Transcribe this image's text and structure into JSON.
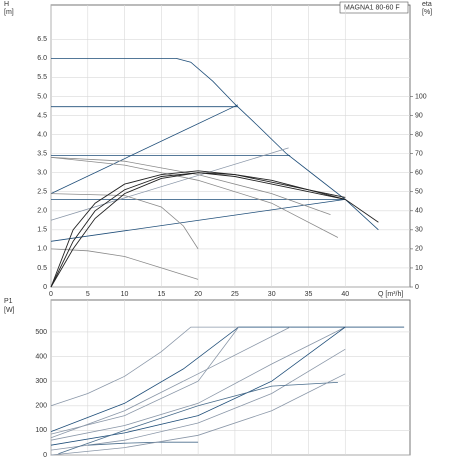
{
  "chart_data": [
    {
      "type": "line",
      "title": "MAGNA1 80-60 F",
      "ylabel": "H",
      "yunit": "[m]",
      "y2label": "eta",
      "y2unit": "[%]",
      "xlabel": "Q [m³/h]",
      "xlim": [
        0,
        48.8
      ],
      "ylim": [
        0,
        7.4
      ],
      "y2lim": [
        0,
        148
      ],
      "xticks": [
        0,
        5,
        10,
        15,
        20,
        25,
        30,
        35,
        40
      ],
      "yticks": [
        0,
        0.5,
        {
          "value": 1,
          "label": "1.0"
        },
        1.5,
        {
          "value": 2,
          "label": "2.0"
        },
        2.5,
        {
          "value": 3,
          "label": "3.0"
        },
        3.5,
        {
          "value": 4,
          "label": "4.0"
        },
        4.5,
        {
          "value": 5,
          "label": "5.0"
        },
        5.5,
        {
          "value": 6,
          "label": "6.0"
        },
        6.5
      ],
      "y2ticks": [
        0,
        10,
        20,
        30,
        40,
        50,
        60,
        70,
        80,
        90,
        100
      ],
      "grid": true,
      "series": [
        {
          "color": "#1f4e79",
          "x": [
            0,
            17,
            19,
            22,
            25,
            28,
            32,
            36,
            40,
            44.5
          ],
          "values": [
            6.0,
            6.0,
            5.9,
            5.4,
            4.8,
            4.25,
            3.5,
            2.9,
            2.3,
            1.5
          ]
        },
        {
          "color": "#1f4e79",
          "x": [
            0,
            25.4
          ],
          "values": [
            4.73,
            4.73
          ]
        },
        {
          "color": "#1f4e79",
          "x": [
            0,
            32.5
          ],
          "values": [
            3.45,
            3.45
          ]
        },
        {
          "color": "#1f4e79",
          "x": [
            0,
            40
          ],
          "values": [
            2.3,
            2.3
          ]
        },
        {
          "color": "#1f4e79",
          "x": [
            0,
            25.4
          ],
          "values": [
            2.45,
            4.78
          ]
        },
        {
          "color": "#8a97a8",
          "x": [
            0,
            32.3
          ],
          "values": [
            1.75,
            3.65
          ]
        },
        {
          "color": "#1f4e79",
          "x": [
            0,
            40
          ],
          "values": [
            1.2,
            2.3
          ]
        },
        {
          "color": "#8a8a8a",
          "x": [
            0,
            10,
            20,
            30,
            38
          ],
          "values": [
            3.4,
            3.3,
            2.95,
            2.45,
            1.9
          ]
        },
        {
          "color": "#8a8a8a",
          "x": [
            0,
            10,
            20,
            30,
            39
          ],
          "values": [
            3.4,
            3.2,
            2.8,
            2.2,
            1.3
          ]
        },
        {
          "color": "#8a8a8a",
          "x": [
            0,
            10,
            15,
            18,
            20
          ],
          "values": [
            2.45,
            2.4,
            2.1,
            1.6,
            1.0
          ]
        },
        {
          "color": "#8a8a8a",
          "x": [
            0,
            5,
            10,
            15,
            20
          ],
          "values": [
            1.0,
            0.95,
            0.8,
            0.5,
            0.2
          ]
        },
        {
          "color": "#222222",
          "x": [
            0,
            3,
            6,
            10,
            15,
            20,
            25,
            30,
            35,
            40,
            44.5
          ],
          "values": [
            0,
            1.2,
            2.0,
            2.55,
            2.9,
            3.0,
            2.9,
            2.7,
            2.5,
            2.3,
            1.7
          ]
        },
        {
          "color": "#222222",
          "x": [
            0,
            3,
            6,
            10,
            15,
            20,
            25,
            30,
            35,
            40
          ],
          "values": [
            0,
            1.0,
            1.8,
            2.45,
            2.85,
            3.0,
            2.95,
            2.8,
            2.55,
            2.3
          ]
        },
        {
          "color": "#222222",
          "x": [
            0,
            3,
            6,
            10,
            15,
            20,
            25,
            30,
            35,
            40
          ],
          "values": [
            0,
            1.5,
            2.2,
            2.7,
            2.95,
            3.05,
            2.95,
            2.75,
            2.55,
            2.35
          ]
        }
      ]
    },
    {
      "type": "line",
      "ylabel": "P1",
      "yunit": "[W]",
      "xlim": [
        0,
        48.8
      ],
      "ylim": [
        0,
        630
      ],
      "yticks": [
        0,
        100,
        200,
        300,
        400,
        500
      ],
      "grid": true,
      "series": [
        {
          "color": "#8a97a8",
          "x": [
            0,
            5,
            10,
            15,
            19,
            48
          ],
          "values": [
            200,
            250,
            320,
            420,
            520,
            520
          ]
        },
        {
          "color": "#1f4e79",
          "x": [
            0,
            10,
            18,
            25.5,
            48
          ],
          "values": [
            95,
            210,
            350,
            520,
            520
          ]
        },
        {
          "color": "#8a97a8",
          "x": [
            0,
            10,
            20,
            25.5
          ],
          "values": [
            85,
            160,
            300,
            520
          ]
        },
        {
          "color": "#8a97a8",
          "x": [
            0,
            10,
            20,
            32.5
          ],
          "values": [
            70,
            180,
            330,
            520
          ]
        },
        {
          "color": "#8a97a8",
          "x": [
            0,
            10,
            20,
            30,
            40
          ],
          "values": [
            60,
            120,
            210,
            370,
            520
          ]
        },
        {
          "color": "#1f4e79",
          "x": [
            0,
            10,
            20,
            30,
            40
          ],
          "values": [
            40,
            90,
            160,
            300,
            520
          ]
        },
        {
          "color": "#8a97a8",
          "x": [
            0,
            10,
            20,
            30,
            40
          ],
          "values": [
            20,
            60,
            130,
            250,
            430
          ]
        },
        {
          "color": "#4a6d8c",
          "x": [
            1,
            10,
            20,
            30,
            39
          ],
          "values": [
            5,
            100,
            200,
            280,
            295
          ]
        },
        {
          "color": "#4a6d8c",
          "x": [
            5,
            10,
            15,
            20
          ],
          "values": [
            40,
            48,
            52,
            52
          ]
        },
        {
          "color": "#8a97a8",
          "x": [
            0,
            10,
            20,
            30,
            40
          ],
          "values": [
            0,
            30,
            80,
            180,
            330
          ]
        }
      ]
    }
  ]
}
